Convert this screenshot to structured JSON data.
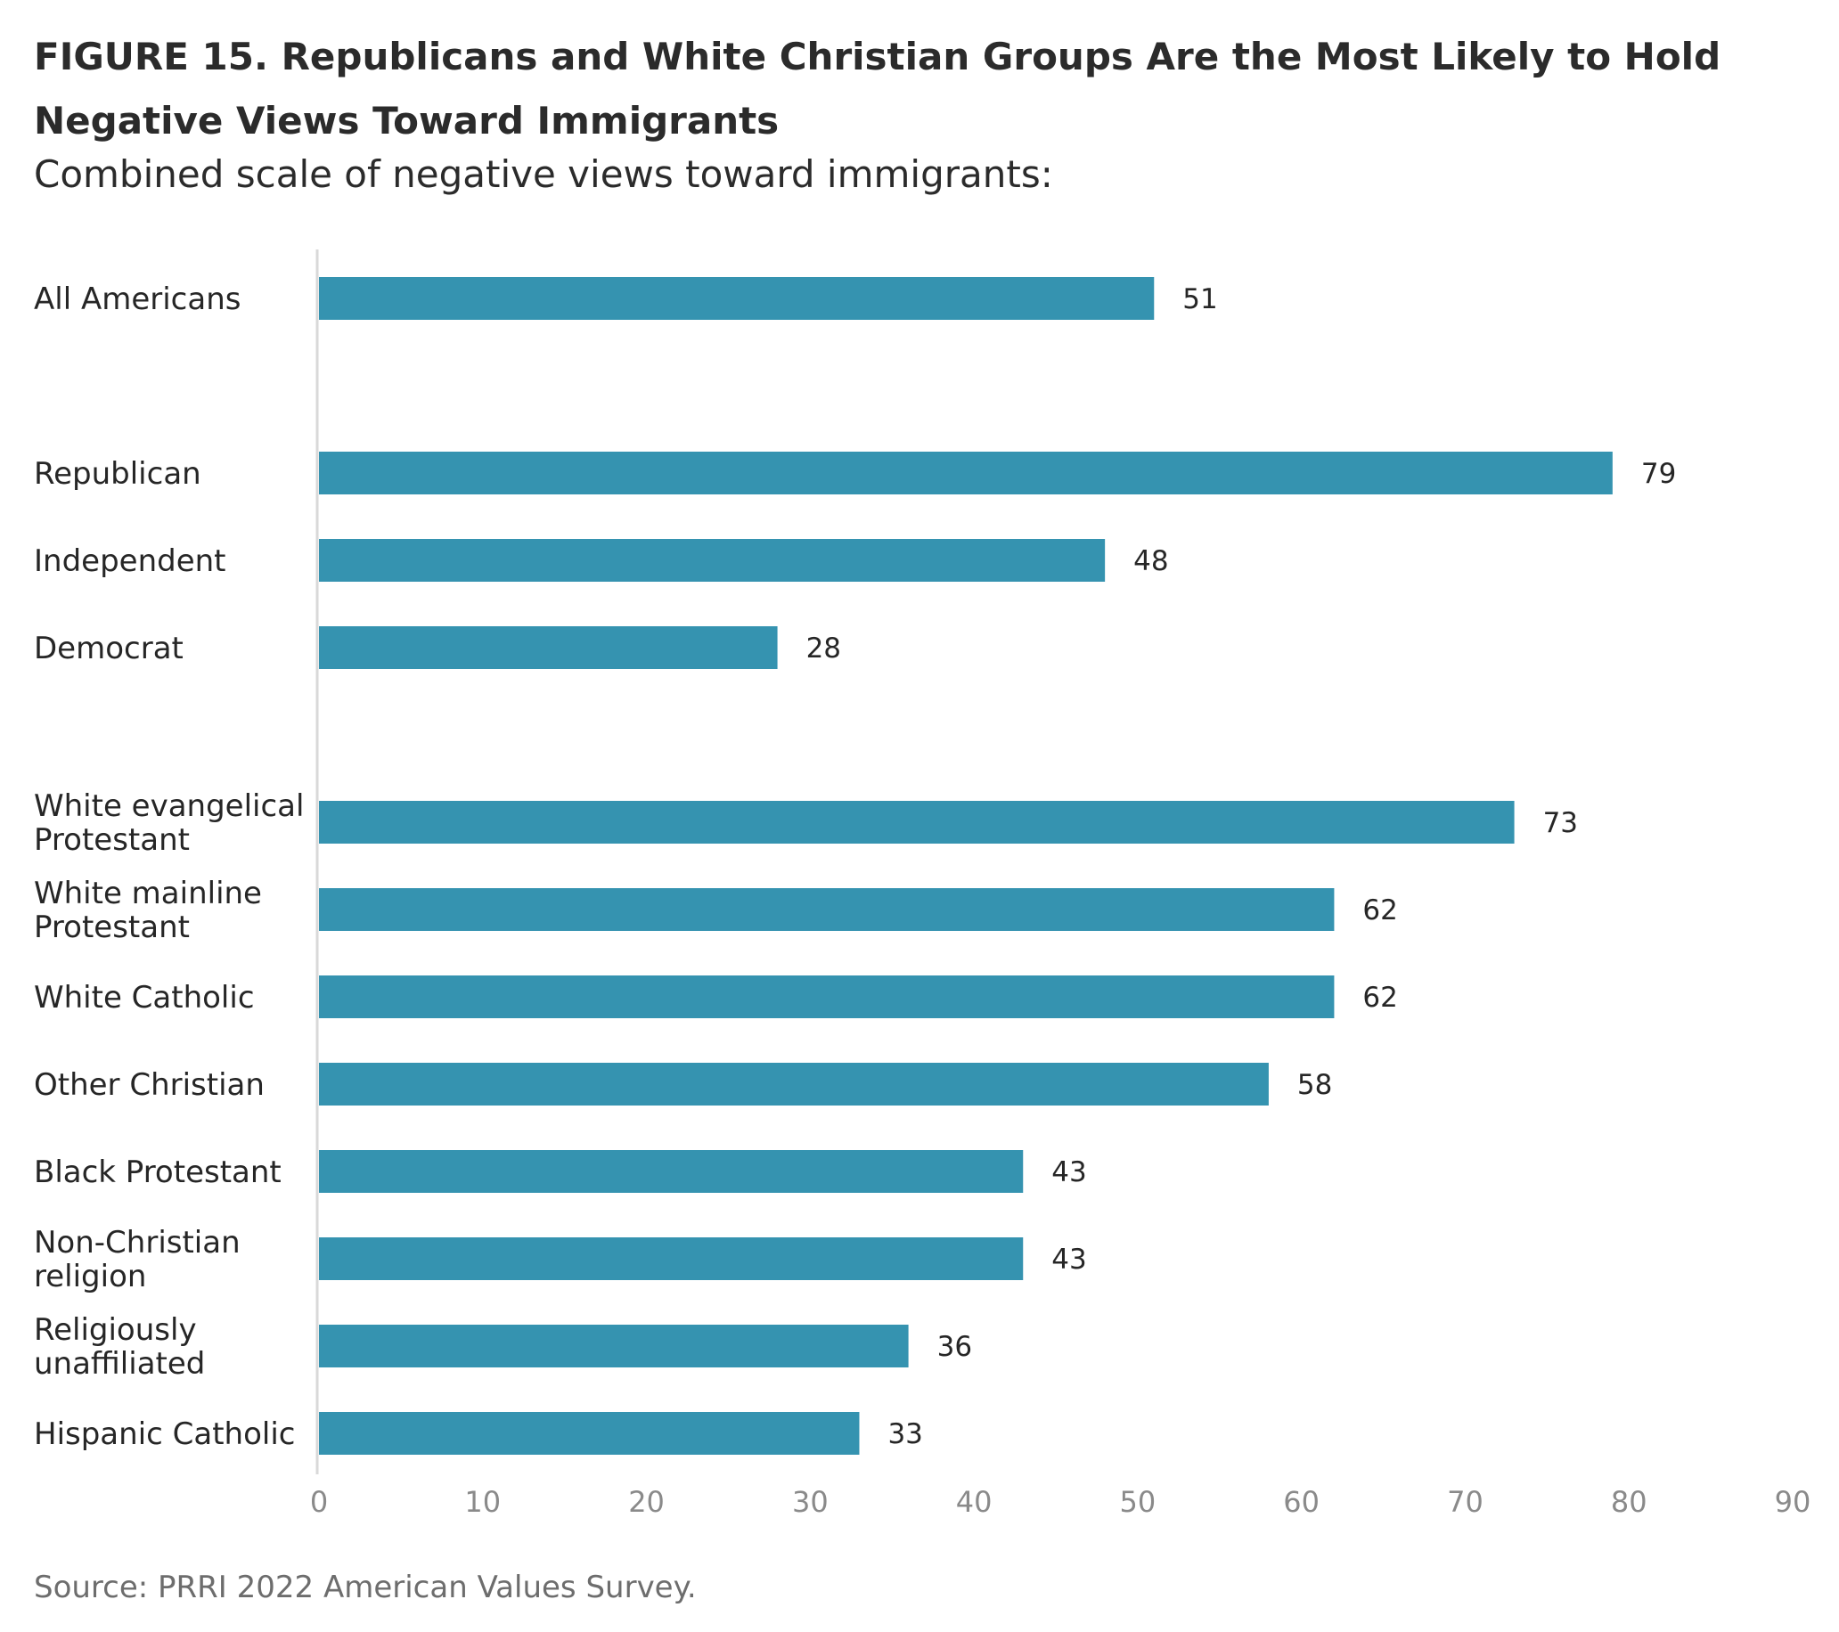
{
  "figure": {
    "title": "FIGURE 15.  Republicans and White Christian Groups Are the Most Likely to Hold Negative Views Toward Immigrants",
    "subtitle": "Combined scale of negative views toward immigrants:",
    "source": "Source: PRRI 2022 American Values Survey."
  },
  "chart_data": {
    "type": "bar",
    "orientation": "horizontal",
    "categories": [
      "All Americans",
      "Republican",
      "Independent",
      "Democrat",
      "White evangelical Protestant",
      "White mainline Protestant",
      "White Catholic",
      "Other Christian",
      "Black Protestant",
      "Non-Christian religion",
      "Religiously unaffiliated",
      "Hispanic Catholic"
    ],
    "category_lines": [
      [
        "All Americans"
      ],
      [
        "Republican"
      ],
      [
        "Independent"
      ],
      [
        "Democrat"
      ],
      [
        "White evangelical",
        "Protestant"
      ],
      [
        "White mainline",
        "Protestant"
      ],
      [
        "White Catholic"
      ],
      [
        "Other Christian"
      ],
      [
        "Black Protestant"
      ],
      [
        "Non-Christian",
        "religion"
      ],
      [
        "Religiously",
        "unaffiliated"
      ],
      [
        "Hispanic Catholic"
      ]
    ],
    "groups": [
      [
        "All Americans"
      ],
      [
        "Republican",
        "Independent",
        "Democrat"
      ],
      [
        "White evangelical Protestant",
        "White mainline Protestant",
        "White Catholic",
        "Other Christian",
        "Black Protestant",
        "Non-Christian religion",
        "Religiously unaffiliated",
        "Hispanic Catholic"
      ]
    ],
    "values": [
      51,
      79,
      48,
      28,
      73,
      62,
      62,
      58,
      43,
      43,
      36,
      33
    ],
    "xlim": [
      0,
      90
    ],
    "xticks": [
      0,
      10,
      20,
      30,
      40,
      50,
      60,
      70,
      80,
      90
    ],
    "grid": false,
    "bar_color": "#3593b0",
    "axis_color": "#d9d9d9",
    "data_labels": true
  }
}
